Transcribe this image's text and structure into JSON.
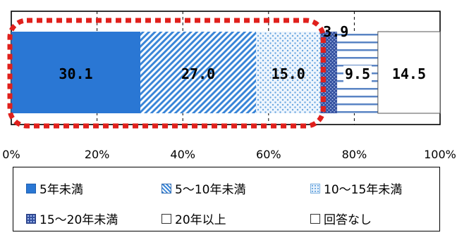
{
  "chart_data": {
    "type": "bar",
    "orientation": "horizontal-stacked-100",
    "series": [
      {
        "name": "5年未満",
        "value": 30.1,
        "label": "30.1",
        "color": "#2a77d4",
        "pattern": "solid"
      },
      {
        "name": "5～10年未満",
        "value": 27.0,
        "label": "27.0",
        "color": "#3a86d8",
        "pattern": "diagonal-stripes"
      },
      {
        "name": "10～15年未満",
        "value": 15.0,
        "label": "15.0",
        "color": "#6aa6e0",
        "pattern": "dots"
      },
      {
        "name": "15～20年未満",
        "value": 3.9,
        "label": "3.9",
        "color": "#3451a0",
        "pattern": "dots-dark"
      },
      {
        "name": "20年以上",
        "value": 9.5,
        "label": "9.5",
        "color": "#5a84c4",
        "pattern": "horizontal-lines"
      },
      {
        "name": "回答なし",
        "value": 14.5,
        "label": "14.5",
        "color": "#ffffff",
        "pattern": "none"
      }
    ],
    "xlim": [
      0,
      100
    ],
    "xticks": [
      "0%",
      "20%",
      "40%",
      "60%",
      "80%",
      "100%"
    ],
    "grid": "dashed-vertical",
    "legend": "bottom",
    "highlight": {
      "covers_series": [
        "5年未満",
        "5～10年未満",
        "10～15年未満"
      ],
      "color": "#e0201c",
      "style": "dashed-rounded-box"
    }
  }
}
